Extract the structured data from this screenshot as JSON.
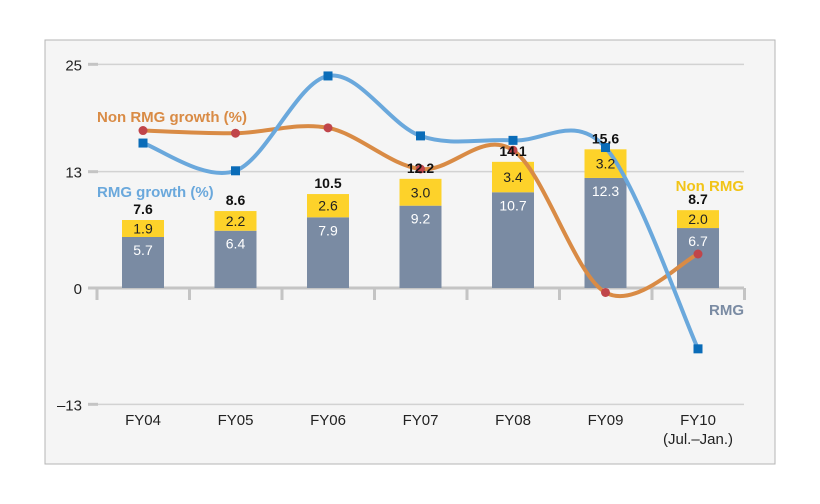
{
  "chart_data": {
    "type": "bar",
    "categories": [
      "FY04",
      "FY05",
      "FY06",
      "FY07",
      "FY08",
      "FY09",
      "FY10"
    ],
    "category_sublabels": [
      "",
      "",
      "",
      "",
      "",
      "",
      "(Jul.–Jan.)"
    ],
    "yticks": [
      25,
      13,
      0,
      -13
    ],
    "ylim": [
      -13,
      25
    ],
    "grid": true,
    "stacked_series": [
      {
        "name": "RMG",
        "values": [
          5.7,
          6.4,
          7.9,
          9.2,
          10.7,
          12.3,
          6.7
        ],
        "color": "#7a8ba3"
      },
      {
        "name": "Non RMG",
        "values": [
          1.9,
          2.2,
          2.6,
          3.0,
          3.4,
          3.2,
          2.0
        ],
        "color": "#fdd22a"
      }
    ],
    "totals": [
      "7.6",
      "8.6",
      "10.5",
      "12.2",
      "14.1",
      "15.6",
      "8.7"
    ],
    "line_series": [
      {
        "name": "RMG growth (%)",
        "values": [
          16.2,
          13.1,
          23.7,
          17.0,
          16.5,
          15.7,
          -6.8
        ],
        "color": "#6aa8dc",
        "marker_color": "#0a6cb8",
        "marker": "square"
      },
      {
        "name": "Non RMG growth (%)",
        "values": [
          17.6,
          17.3,
          17.9,
          13.3,
          15.4,
          -0.5,
          3.8
        ],
        "color": "#d98b45",
        "marker_color": "#c0454a",
        "marker": "circle"
      }
    ]
  }
}
